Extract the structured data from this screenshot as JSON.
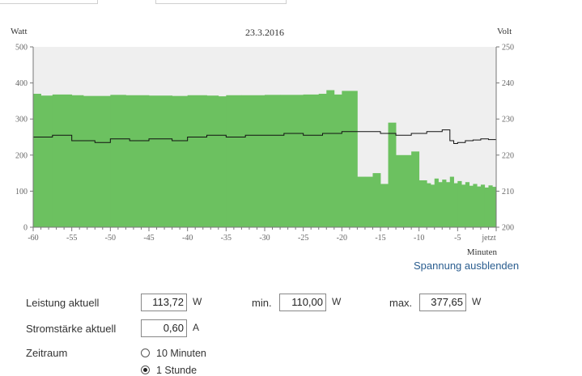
{
  "page_top": {
    "segments": 2
  },
  "chart_data": {
    "type": "area",
    "title": "23.3.2016",
    "y_left_label": "Watt",
    "y_right_label": "Volt",
    "xlabel": "Minuten",
    "x_range": [
      -60,
      0
    ],
    "y_left_range": [
      0,
      500
    ],
    "y_right_range": [
      200,
      250
    ],
    "x_ticks": [
      -60,
      -55,
      -50,
      -45,
      -40,
      -35,
      -30,
      -25,
      -20,
      -15,
      -10,
      -5
    ],
    "x_tick_labels": [
      "-60",
      "-55",
      "-50",
      "-45",
      "-40",
      "-35",
      "-30",
      "-25",
      "-20",
      "-15",
      "-10",
      "-5"
    ],
    "x_end_label": "jetzt",
    "y_left_ticks": [
      "0",
      "100",
      "200",
      "300",
      "400",
      "500"
    ],
    "y_right_ticks": [
      "200",
      "210",
      "220",
      "230",
      "240",
      "250"
    ],
    "grid": false,
    "colors": {
      "power_fill": "#6cc160",
      "voltage_line": "#111111",
      "plot_bg": "#efefef"
    },
    "power_series": {
      "name": "",
      "unit": "W",
      "x": [
        -60,
        -59,
        -57.5,
        -55,
        -53.5,
        -50,
        -48,
        -45,
        -42,
        -40,
        -37.5,
        -36,
        -35,
        -33,
        -30,
        -28,
        -25,
        -23,
        -22,
        -21,
        -20,
        -18,
        -17,
        -16,
        -15,
        -14,
        -13,
        -11,
        -10,
        -9,
        -8.5,
        -8,
        -7.5,
        -7,
        -6.5,
        -6,
        -5.5,
        -5,
        -4.5,
        -4,
        -3.5,
        -3,
        -2.5,
        -2,
        -1.5,
        -1,
        -0.5,
        0
      ],
      "values": [
        370,
        365,
        368,
        366,
        364,
        367,
        366,
        365,
        364,
        366,
        365,
        363,
        366,
        366,
        367,
        367,
        368,
        370,
        380,
        368,
        378,
        140,
        140,
        150,
        120,
        290,
        200,
        210,
        130,
        122,
        118,
        135,
        125,
        132,
        125,
        140,
        122,
        128,
        118,
        125,
        115,
        120,
        113,
        118,
        110,
        116,
        112,
        113.72
      ]
    },
    "voltage_series": {
      "name": "",
      "unit": "V",
      "x": [
        -60,
        -57.5,
        -55,
        -52,
        -50,
        -47.5,
        -45,
        -42,
        -40,
        -37.5,
        -35,
        -32.5,
        -30,
        -27.5,
        -25,
        -22.5,
        -20,
        -18,
        -15,
        -13,
        -11,
        -9,
        -7,
        -6,
        -5.5,
        -5,
        -4,
        -3,
        -2,
        -1,
        0
      ],
      "values": [
        225,
        225.5,
        224,
        223.5,
        224.5,
        224,
        224.5,
        224,
        225,
        225.5,
        225,
        225.5,
        225.5,
        226,
        225.5,
        226,
        226.5,
        226.5,
        226,
        225.5,
        226,
        226.5,
        227,
        224,
        223.2,
        223.5,
        224,
        224.2,
        224.5,
        224.3,
        224.8
      ]
    }
  },
  "toggle_voltage": "Spannung ausblenden",
  "rows": {
    "power_label": "Leistung aktuell",
    "power_value": "113,72",
    "power_unit": "W",
    "min_label": "min.",
    "min_value": "110,00",
    "min_unit": "W",
    "max_label": "max.",
    "max_value": "377,65",
    "max_unit": "W",
    "current_label": "Stromstärke aktuell",
    "current_value": "0,60",
    "current_unit": "A",
    "period_label": "Zeitraum",
    "period_options": [
      {
        "label": "10 Minuten",
        "selected": false
      },
      {
        "label": "1 Stunde",
        "selected": true
      }
    ]
  }
}
